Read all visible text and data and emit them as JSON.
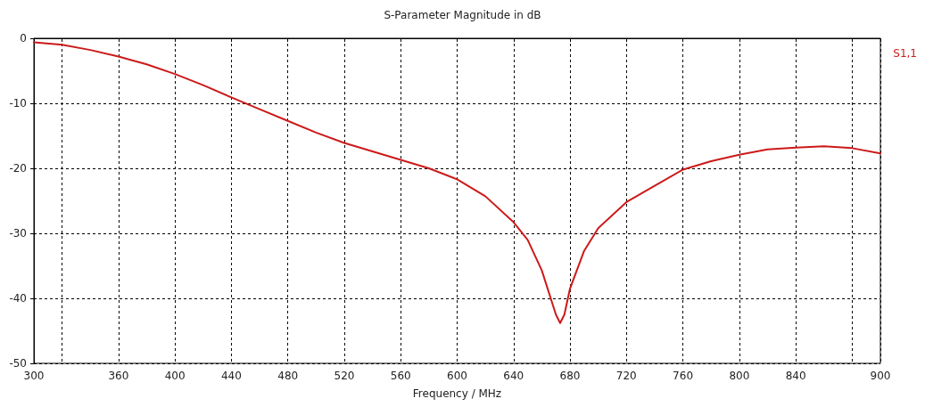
{
  "chart_data": {
    "type": "line",
    "title": "S-Parameter Magnitude in dB",
    "xlabel": "Frequency / MHz",
    "series": [
      {
        "name": "S1,1",
        "color": "#cc1a1a",
        "x": [
          300,
          320,
          340,
          360,
          380,
          400,
          420,
          440,
          460,
          480,
          500,
          520,
          540,
          560,
          580,
          600,
          620,
          640,
          650,
          660,
          670,
          673,
          676,
          680,
          690,
          700,
          720,
          740,
          760,
          780,
          800,
          820,
          840,
          860,
          880,
          900
        ],
        "values": [
          -0.6,
          -1.0,
          -1.8,
          -2.8,
          -4.0,
          -5.5,
          -7.2,
          -9.1,
          -10.9,
          -12.7,
          -14.5,
          -16.1,
          -17.4,
          -18.7,
          -20.0,
          -21.7,
          -24.3,
          -28.3,
          -31.0,
          -35.7,
          -42.5,
          -43.8,
          -42.5,
          -38.5,
          -32.7,
          -29.2,
          -25.2,
          -22.7,
          -20.2,
          -18.9,
          -17.9,
          -17.1,
          -16.8,
          -16.6,
          -16.9,
          -17.7
        ]
      }
    ],
    "xlim": [
      300,
      900
    ],
    "xticks": [
      300,
      {
        "value": 320,
        "label": null
      },
      360,
      400,
      440,
      480,
      520,
      560,
      600,
      640,
      680,
      720,
      760,
      800,
      840,
      {
        "value": 880,
        "label": null
      },
      900
    ],
    "ylim": [
      -50,
      0
    ],
    "yticks": [
      -50,
      -40,
      -30,
      -20,
      -10,
      0
    ],
    "grid": true,
    "legend": "top right",
    "marker": "none",
    "line_style": "solid"
  }
}
